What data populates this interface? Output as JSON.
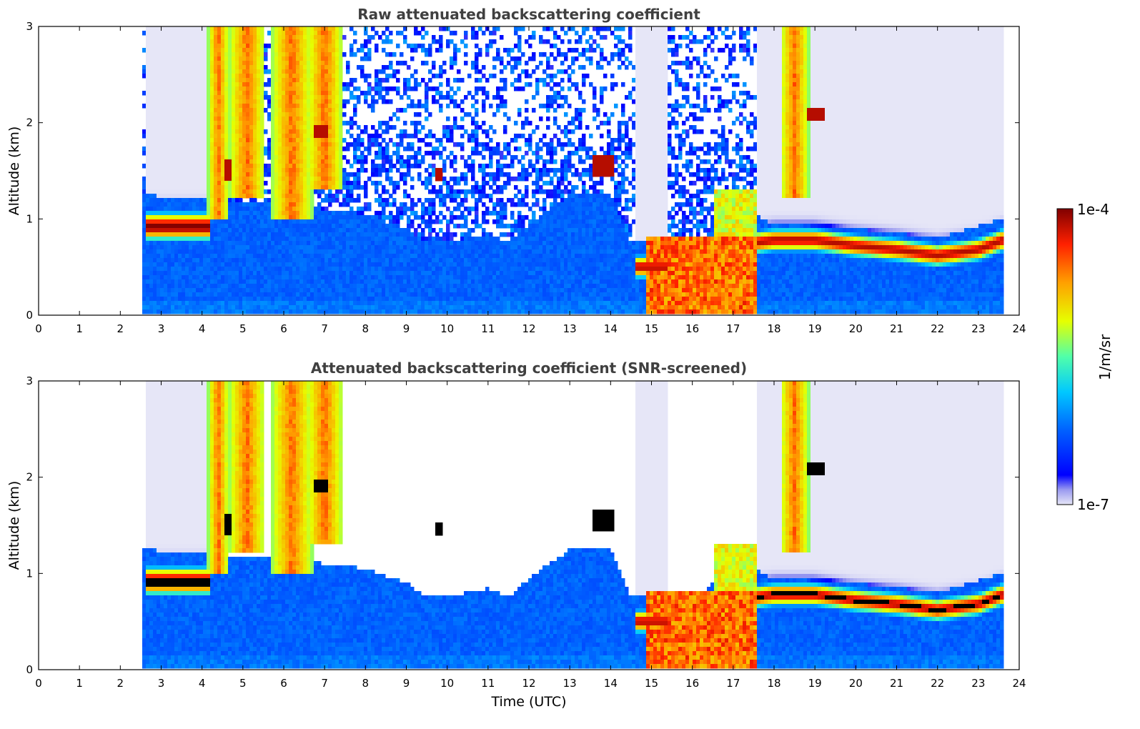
{
  "chart_data": [
    {
      "type": "heatmap",
      "title": "Raw attenuated backscattering coefficient",
      "xlabel": "",
      "ylabel": "Altitude (km)",
      "xlim": [
        0,
        24
      ],
      "ylim": [
        0,
        3
      ],
      "xticks": [
        0,
        1,
        2,
        3,
        4,
        5,
        6,
        7,
        8,
        9,
        10,
        11,
        12,
        13,
        14,
        15,
        16,
        17,
        18,
        19,
        20,
        21,
        22,
        23,
        24
      ],
      "yticks": [
        0,
        1,
        2,
        3
      ],
      "data_start_time": 2.55,
      "data_end_time": 23.6,
      "features": [
        {
          "name": "boundary layer aerosol",
          "time": [
            2.6,
            23.6
          ],
          "top_km": [
            0.7,
            1.1
          ]
        },
        {
          "name": "low cloud (morning)",
          "time": [
            2.6,
            4.2
          ],
          "base_km": 0.75,
          "top_km": 1.05
        },
        {
          "name": "precipitating high cloud",
          "time": [
            4.2,
            7.8
          ],
          "base_km": 0.9,
          "top_km": 3.0
        },
        {
          "name": "afternoon convection / precipitation",
          "time": [
            14.8,
            17.6
          ],
          "base_km": 0.0,
          "top_km": 1.2
        },
        {
          "name": "evening low cloud",
          "time": [
            17.6,
            23.6
          ],
          "base_km": 0.55,
          "top_km": 0.95
        }
      ]
    },
    {
      "type": "heatmap",
      "title": "Attenuated backscattering coefficient (SNR-screened)",
      "xlabel": "Time (UTC)",
      "ylabel": "Altitude (km)",
      "xlim": [
        0,
        24
      ],
      "ylim": [
        0,
        3
      ],
      "xticks": [
        0,
        1,
        2,
        3,
        4,
        5,
        6,
        7,
        8,
        9,
        10,
        11,
        12,
        13,
        14,
        15,
        16,
        17,
        18,
        19,
        20,
        21,
        22,
        23,
        24
      ],
      "yticks": [
        0,
        1,
        2,
        3
      ],
      "data_start_time": 2.55,
      "data_end_time": 23.6
    }
  ],
  "colorbar": {
    "label": "1/m/sr",
    "max_label": "1e-4",
    "min_label": "1e-7",
    "range": [
      1e-07,
      0.0001
    ],
    "scale": "log"
  },
  "colors": {
    "text": "#000000",
    "title": "#404040",
    "cmap": [
      "#e6e6f7",
      "#9a9af0",
      "#0000ff",
      "#0060ff",
      "#00c8ff",
      "#50ffaa",
      "#e6ff00",
      "#ffa000",
      "#ff2000",
      "#800000"
    ]
  }
}
